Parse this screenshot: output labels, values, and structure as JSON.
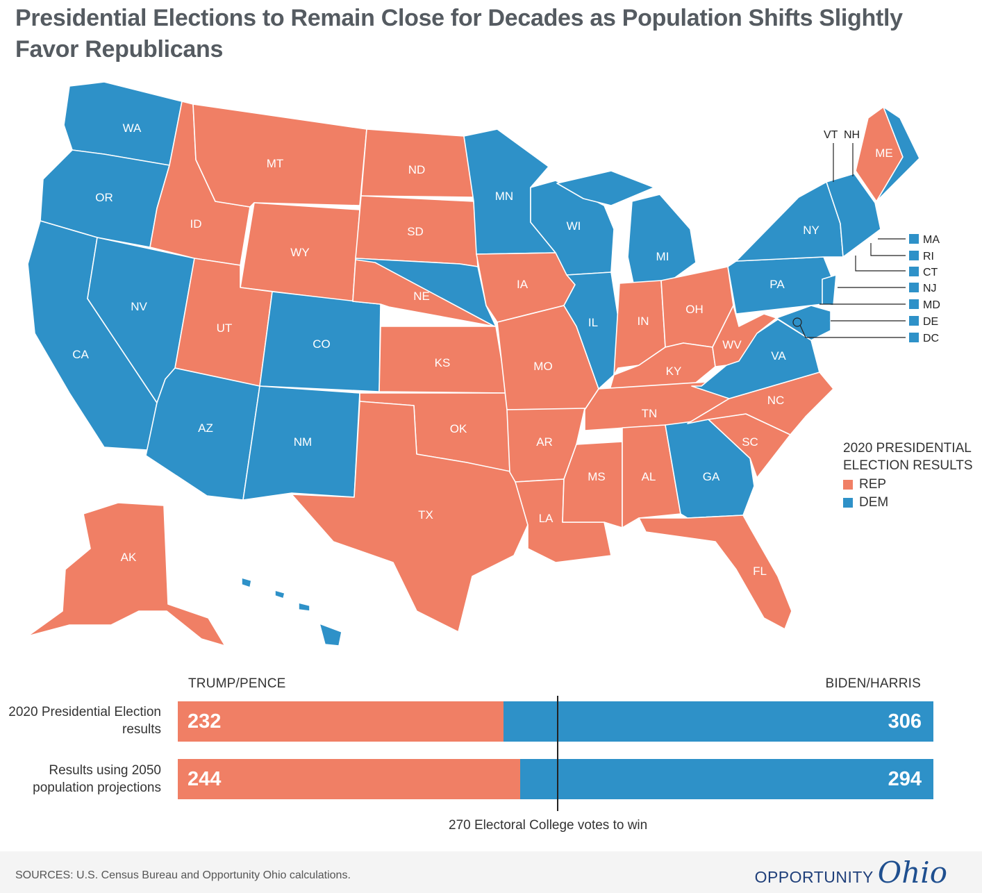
{
  "title": "Presidential Elections to Remain Close for Decades as Population Shifts Slightly Favor Republicans",
  "colors": {
    "rep": "#f07f65",
    "dem": "#2e91c8"
  },
  "states": {
    "WA": "WA",
    "OR": "OR",
    "CA": "CA",
    "NV": "NV",
    "ID": "ID",
    "MT": "MT",
    "WY": "WY",
    "UT": "UT",
    "CO": "CO",
    "AZ": "AZ",
    "NM": "NM",
    "ND": "ND",
    "SD": "SD",
    "NE": "NE",
    "KS": "KS",
    "OK": "OK",
    "TX": "TX",
    "MN": "MN",
    "IA": "IA",
    "MO": "MO",
    "AR": "AR",
    "LA": "LA",
    "WI": "WI",
    "IL": "IL",
    "MS": "MS",
    "MI": "MI",
    "IN": "IN",
    "OH": "OH",
    "KY": "KY",
    "TN": "TN",
    "AL": "AL",
    "GA": "GA",
    "FL": "FL",
    "SC": "SC",
    "NC": "NC",
    "VA": "VA",
    "WV": "WV",
    "PA": "PA",
    "NY": "NY",
    "ME": "ME",
    "AK": "AK"
  },
  "small_states": {
    "VT": "VT",
    "NH": "NH",
    "MA": "MA",
    "RI": "RI",
    "CT": "CT",
    "NJ": "NJ",
    "MD": "MD",
    "DE": "DE",
    "DC": "DC"
  },
  "legend": {
    "title": "2020 PRESIDENTIAL ELECTION RESULTS",
    "rep": "REP",
    "dem": "DEM"
  },
  "bars": {
    "left_candidate": "TRUMP/PENCE",
    "right_candidate": "BIDEN/HARRIS",
    "total": 538,
    "rows": [
      {
        "label": "2020 Presidential Election results",
        "rep": 232,
        "dem": 306
      },
      {
        "label": "Results using 2050 population projections",
        "rep": 244,
        "dem": 294
      }
    ],
    "threshold": 270,
    "threshold_label": "270 Electoral College votes to win"
  },
  "footer": {
    "sources": "SOURCES: U.S. Census Bureau and Opportunity Ohio calculations.",
    "brand_word": "OPPORTUNITY",
    "brand_script": "Ohio"
  }
}
